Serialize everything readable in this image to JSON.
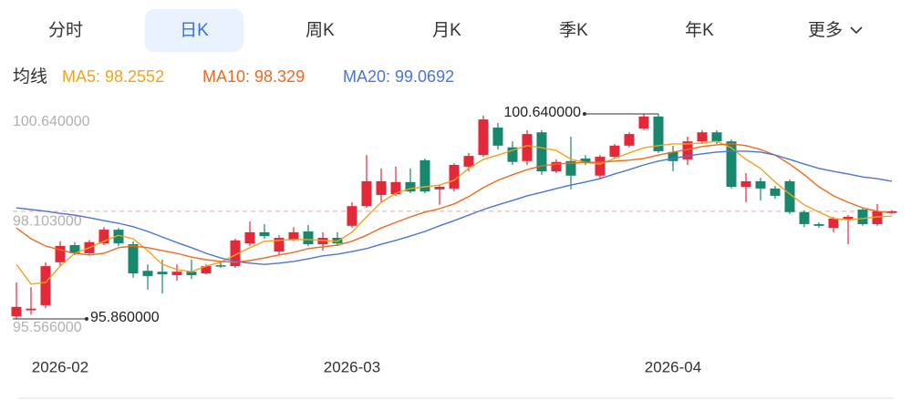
{
  "tabs": {
    "items": [
      "分时",
      "日K",
      "周K",
      "月K",
      "季K",
      "年K",
      "更多"
    ],
    "active": 1
  },
  "chart_data": {
    "type": "candlestick",
    "legend_title": "均线",
    "categories": [
      null,
      null,
      null,
      "2026-02",
      null,
      null,
      null,
      null,
      null,
      null,
      null,
      null,
      null,
      null,
      null,
      null,
      null,
      null,
      null,
      null,
      null,
      null,
      null,
      "2026-03",
      null,
      null,
      null,
      null,
      null,
      null,
      null,
      null,
      null,
      null,
      null,
      null,
      null,
      null,
      null,
      null,
      null,
      null,
      null,
      null,
      null,
      "2026-04",
      null,
      null,
      null,
      null,
      null,
      null,
      null,
      null,
      null,
      null,
      null,
      null,
      null,
      null,
      null
    ],
    "open": [
      95.92,
      96.06,
      96.18,
      97.18,
      97.58,
      97.39,
      97.62,
      97.94,
      97.6,
      96.98,
      96.96,
      96.88,
      96.96,
      96.92,
      97.11,
      97.09,
      97.62,
      97.88,
      97.43,
      97.71,
      97.9,
      97.6,
      97.75,
      98.03,
      98.49,
      98.75,
      98.77,
      99.05,
      99.56,
      98.88,
      98.9,
      99.41,
      99.68,
      100.32,
      99.86,
      99.54,
      100.21,
      99.3,
      99.54,
      99.6,
      99.2,
      99.64,
      99.9,
      100.3,
      100.58,
      99.75,
      99.58,
      100.0,
      100.21,
      100.0,
      98.94,
      99.07,
      98.9,
      99.07,
      98.35,
      98.07,
      97.98,
      98.18,
      98.41,
      98.07,
      98.33
    ],
    "high": [
      96.71,
      96.6,
      97.18,
      97.67,
      97.65,
      97.7,
      98.0,
      97.98,
      97.67,
      97.13,
      97.24,
      97.13,
      97.24,
      97.13,
      97.18,
      97.73,
      98.13,
      98.07,
      97.81,
      98.0,
      98.05,
      97.88,
      97.88,
      98.58,
      99.68,
      99.37,
      99.41,
      99.37,
      99.6,
      98.98,
      99.49,
      99.73,
      100.6,
      100.43,
      100.0,
      100.26,
      100.26,
      99.58,
      100.11,
      99.68,
      99.68,
      99.94,
      100.21,
      100.64,
      100.64,
      99.9,
      100.11,
      100.26,
      100.26,
      100.04,
      99.26,
      99.15,
      98.96,
      99.11,
      98.39,
      98.11,
      98.24,
      98.28,
      98.45,
      98.54,
      98.39
    ],
    "low": [
      95.86,
      95.96,
      96.11,
      97.09,
      97.35,
      97.35,
      97.58,
      97.56,
      96.82,
      96.54,
      96.45,
      96.75,
      96.79,
      96.9,
      97.05,
      97.05,
      97.56,
      97.73,
      97.35,
      97.67,
      97.56,
      97.45,
      97.56,
      97.98,
      98.45,
      98.58,
      98.73,
      98.79,
      98.79,
      98.52,
      98.83,
      99.3,
      99.64,
      99.81,
      99.45,
      99.45,
      99.22,
      99.26,
      98.88,
      99.45,
      99.11,
      99.6,
      99.86,
      100.26,
      99.73,
      99.3,
      99.45,
      99.94,
      99.94,
      98.9,
      98.58,
      98.62,
      98.66,
      98.3,
      98.0,
      97.98,
      97.88,
      97.6,
      98.03,
      98.03,
      98.31
    ],
    "close": [
      96.14,
      96.1,
      97.09,
      97.56,
      97.39,
      97.65,
      97.94,
      97.62,
      96.92,
      96.86,
      96.9,
      96.96,
      96.88,
      97.09,
      97.09,
      97.69,
      97.88,
      97.79,
      97.75,
      97.88,
      97.6,
      97.75,
      97.62,
      98.49,
      99.07,
      99.07,
      99.05,
      98.83,
      98.83,
      98.94,
      99.45,
      99.66,
      100.51,
      99.9,
      99.52,
      100.17,
      99.3,
      99.52,
      99.2,
      99.52,
      99.64,
      99.9,
      100.17,
      100.58,
      99.77,
      99.54,
      100.0,
      100.21,
      100.0,
      98.94,
      99.07,
      98.9,
      98.73,
      98.35,
      98.07,
      98.03,
      98.2,
      98.24,
      98.07,
      98.37,
      98.37
    ],
    "up_color": "#e4283a",
    "down_color": "#17876d",
    "series": [
      {
        "name": "MA5: 98.2552",
        "color": "#f2a21e",
        "values": [
          97.13,
          96.67,
          96.71,
          97.09,
          97.39,
          97.52,
          97.67,
          97.81,
          97.73,
          97.45,
          97.13,
          97.01,
          96.96,
          97.09,
          97.18,
          97.35,
          97.52,
          97.67,
          97.69,
          97.71,
          97.71,
          97.69,
          97.67,
          97.88,
          98.24,
          98.58,
          98.79,
          98.9,
          98.94,
          98.98,
          99.09,
          99.37,
          99.58,
          99.68,
          99.79,
          99.9,
          99.85,
          99.79,
          99.58,
          99.51,
          99.47,
          99.6,
          99.73,
          99.85,
          99.9,
          99.94,
          99.94,
          99.96,
          100.0,
          99.85,
          99.58,
          99.37,
          99.05,
          98.77,
          98.52,
          98.35,
          98.2,
          98.17,
          98.2,
          98.24,
          98.2552
        ]
      },
      {
        "name": "MA10: 98.329",
        "color": "#ee6a1e",
        "values": [
          97.98,
          97.73,
          97.56,
          97.47,
          97.39,
          97.35,
          97.39,
          97.52,
          97.56,
          97.52,
          97.45,
          97.39,
          97.3,
          97.24,
          97.2,
          97.18,
          97.22,
          97.28,
          97.35,
          97.41,
          97.5,
          97.54,
          97.58,
          97.67,
          97.81,
          97.98,
          98.11,
          98.24,
          98.35,
          98.43,
          98.54,
          98.71,
          98.92,
          99.09,
          99.22,
          99.34,
          99.43,
          99.47,
          99.49,
          99.51,
          99.51,
          99.54,
          99.56,
          99.6,
          99.68,
          99.75,
          99.81,
          99.88,
          99.92,
          99.94,
          99.9,
          99.81,
          99.68,
          99.47,
          99.22,
          98.94,
          98.73,
          98.58,
          98.45,
          98.37,
          98.329
        ]
      },
      {
        "name": "MA20: 99.0692",
        "color": "#4a75d6",
        "values": [
          98.45,
          98.41,
          98.37,
          98.32,
          98.28,
          98.22,
          98.15,
          98.09,
          98.01,
          97.9,
          97.77,
          97.64,
          97.52,
          97.39,
          97.28,
          97.2,
          97.16,
          97.13,
          97.16,
          97.2,
          97.26,
          97.33,
          97.37,
          97.43,
          97.5,
          97.6,
          97.69,
          97.79,
          97.9,
          98.03,
          98.15,
          98.28,
          98.41,
          98.52,
          98.62,
          98.73,
          98.81,
          98.9,
          98.98,
          99.05,
          99.13,
          99.24,
          99.34,
          99.45,
          99.54,
          99.6,
          99.66,
          99.71,
          99.75,
          99.77,
          99.77,
          99.75,
          99.68,
          99.58,
          99.47,
          99.37,
          99.3,
          99.24,
          99.17,
          99.13,
          99.0692
        ]
      }
    ],
    "ylim": [
      95.566,
      100.64
    ],
    "yticks": [
      {
        "value": 95.566,
        "label": "95.566000"
      },
      {
        "value": 98.103,
        "label": "98.103000"
      },
      {
        "value": 100.64,
        "label": "100.640000"
      }
    ],
    "reference_line": 98.37,
    "annotations": [
      {
        "value": 100.64,
        "label": "100.640000"
      },
      {
        "value": 95.86,
        "label": "95.860000"
      }
    ]
  }
}
